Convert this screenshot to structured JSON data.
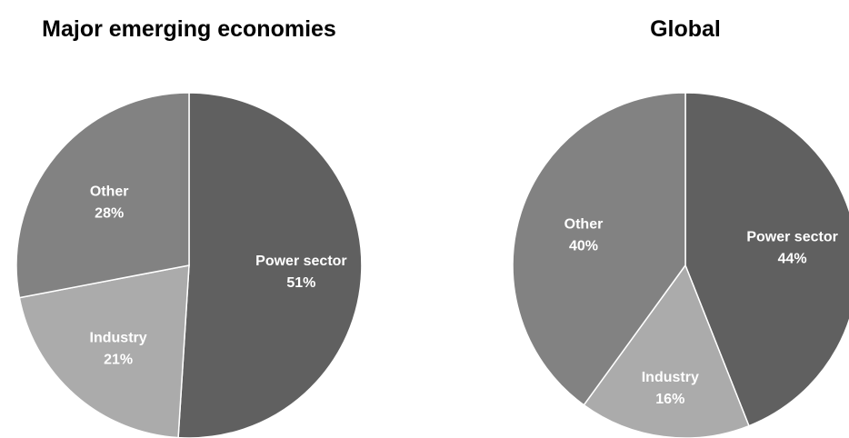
{
  "colors": {
    "power_sector": "#606060",
    "industry": "#ababab",
    "other": "#828282",
    "slice_border": "#ffffff",
    "label_text": "#ffffff"
  },
  "chart_data": [
    {
      "type": "pie",
      "title": "Major emerging economies",
      "slices": [
        {
          "label": "Power sector",
          "value": 51,
          "value_text": "51%",
          "color_key": "power_sector"
        },
        {
          "label": "Industry",
          "value": 21,
          "value_text": "21%",
          "color_key": "industry"
        },
        {
          "label": "Other",
          "value": 28,
          "value_text": "28%",
          "color_key": "other"
        }
      ],
      "start": "12 o'clock",
      "direction": "clockwise",
      "legend": "none"
    },
    {
      "type": "pie",
      "title": "Global",
      "slices": [
        {
          "label": "Power sector",
          "value": 44,
          "value_text": "44%",
          "color_key": "power_sector"
        },
        {
          "label": "Industry",
          "value": 16,
          "value_text": "16%",
          "color_key": "industry"
        },
        {
          "label": "Other",
          "value": 40,
          "value_text": "40%",
          "color_key": "other"
        }
      ],
      "start": "12 o'clock",
      "direction": "clockwise",
      "legend": "none"
    }
  ]
}
